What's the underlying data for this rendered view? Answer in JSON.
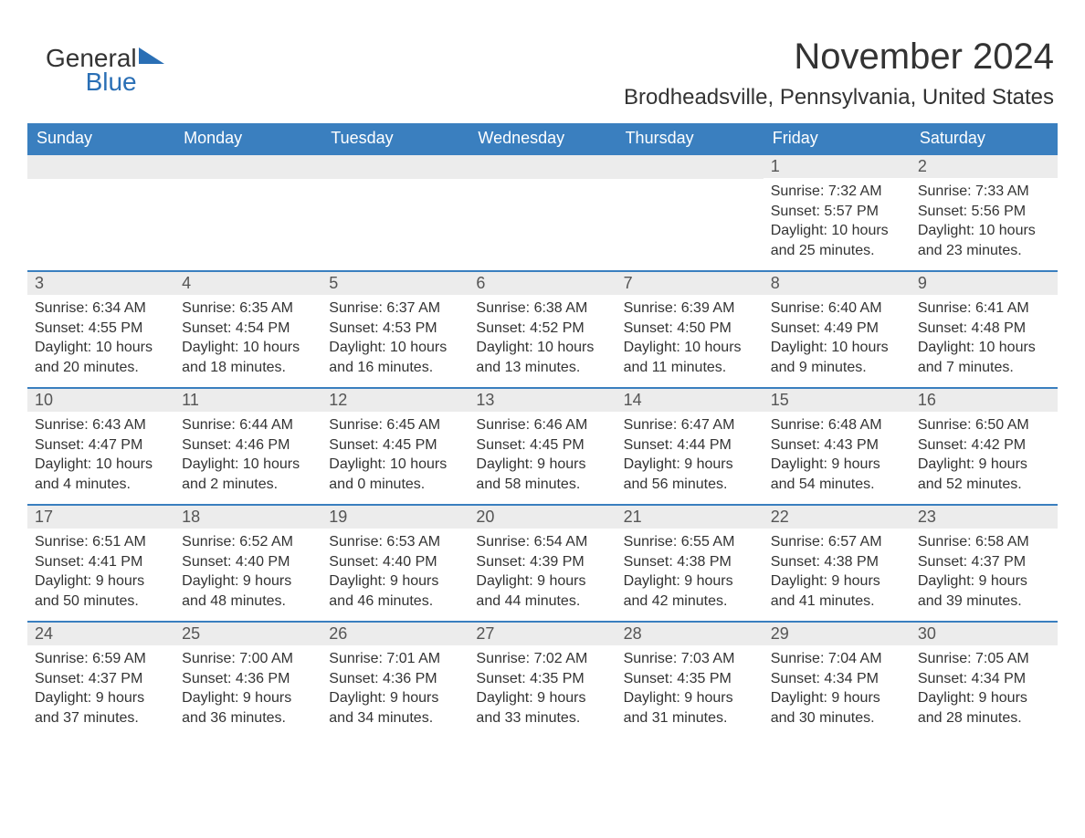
{
  "logo": {
    "word1": "General",
    "word2": "Blue"
  },
  "title": "November 2024",
  "location": "Brodheadsville, Pennsylvania, United States",
  "colors": {
    "header_bg": "#3a7fbf",
    "header_fg": "#ffffff",
    "row_accent": "#3a7fbf",
    "daynum_bg": "#ececec",
    "text": "#333333",
    "logo_blue": "#2a6fb5"
  },
  "weekdays": [
    "Sunday",
    "Monday",
    "Tuesday",
    "Wednesday",
    "Thursday",
    "Friday",
    "Saturday"
  ],
  "leading_blanks": 5,
  "days": [
    {
      "n": 1,
      "sunrise": "7:32 AM",
      "sunset": "5:57 PM",
      "dl1": "Daylight: 10 hours",
      "dl2": "and 25 minutes."
    },
    {
      "n": 2,
      "sunrise": "7:33 AM",
      "sunset": "5:56 PM",
      "dl1": "Daylight: 10 hours",
      "dl2": "and 23 minutes."
    },
    {
      "n": 3,
      "sunrise": "6:34 AM",
      "sunset": "4:55 PM",
      "dl1": "Daylight: 10 hours",
      "dl2": "and 20 minutes."
    },
    {
      "n": 4,
      "sunrise": "6:35 AM",
      "sunset": "4:54 PM",
      "dl1": "Daylight: 10 hours",
      "dl2": "and 18 minutes."
    },
    {
      "n": 5,
      "sunrise": "6:37 AM",
      "sunset": "4:53 PM",
      "dl1": "Daylight: 10 hours",
      "dl2": "and 16 minutes."
    },
    {
      "n": 6,
      "sunrise": "6:38 AM",
      "sunset": "4:52 PM",
      "dl1": "Daylight: 10 hours",
      "dl2": "and 13 minutes."
    },
    {
      "n": 7,
      "sunrise": "6:39 AM",
      "sunset": "4:50 PM",
      "dl1": "Daylight: 10 hours",
      "dl2": "and 11 minutes."
    },
    {
      "n": 8,
      "sunrise": "6:40 AM",
      "sunset": "4:49 PM",
      "dl1": "Daylight: 10 hours",
      "dl2": "and 9 minutes."
    },
    {
      "n": 9,
      "sunrise": "6:41 AM",
      "sunset": "4:48 PM",
      "dl1": "Daylight: 10 hours",
      "dl2": "and 7 minutes."
    },
    {
      "n": 10,
      "sunrise": "6:43 AM",
      "sunset": "4:47 PM",
      "dl1": "Daylight: 10 hours",
      "dl2": "and 4 minutes."
    },
    {
      "n": 11,
      "sunrise": "6:44 AM",
      "sunset": "4:46 PM",
      "dl1": "Daylight: 10 hours",
      "dl2": "and 2 minutes."
    },
    {
      "n": 12,
      "sunrise": "6:45 AM",
      "sunset": "4:45 PM",
      "dl1": "Daylight: 10 hours",
      "dl2": "and 0 minutes."
    },
    {
      "n": 13,
      "sunrise": "6:46 AM",
      "sunset": "4:45 PM",
      "dl1": "Daylight: 9 hours",
      "dl2": "and 58 minutes."
    },
    {
      "n": 14,
      "sunrise": "6:47 AM",
      "sunset": "4:44 PM",
      "dl1": "Daylight: 9 hours",
      "dl2": "and 56 minutes."
    },
    {
      "n": 15,
      "sunrise": "6:48 AM",
      "sunset": "4:43 PM",
      "dl1": "Daylight: 9 hours",
      "dl2": "and 54 minutes."
    },
    {
      "n": 16,
      "sunrise": "6:50 AM",
      "sunset": "4:42 PM",
      "dl1": "Daylight: 9 hours",
      "dl2": "and 52 minutes."
    },
    {
      "n": 17,
      "sunrise": "6:51 AM",
      "sunset": "4:41 PM",
      "dl1": "Daylight: 9 hours",
      "dl2": "and 50 minutes."
    },
    {
      "n": 18,
      "sunrise": "6:52 AM",
      "sunset": "4:40 PM",
      "dl1": "Daylight: 9 hours",
      "dl2": "and 48 minutes."
    },
    {
      "n": 19,
      "sunrise": "6:53 AM",
      "sunset": "4:40 PM",
      "dl1": "Daylight: 9 hours",
      "dl2": "and 46 minutes."
    },
    {
      "n": 20,
      "sunrise": "6:54 AM",
      "sunset": "4:39 PM",
      "dl1": "Daylight: 9 hours",
      "dl2": "and 44 minutes."
    },
    {
      "n": 21,
      "sunrise": "6:55 AM",
      "sunset": "4:38 PM",
      "dl1": "Daylight: 9 hours",
      "dl2": "and 42 minutes."
    },
    {
      "n": 22,
      "sunrise": "6:57 AM",
      "sunset": "4:38 PM",
      "dl1": "Daylight: 9 hours",
      "dl2": "and 41 minutes."
    },
    {
      "n": 23,
      "sunrise": "6:58 AM",
      "sunset": "4:37 PM",
      "dl1": "Daylight: 9 hours",
      "dl2": "and 39 minutes."
    },
    {
      "n": 24,
      "sunrise": "6:59 AM",
      "sunset": "4:37 PM",
      "dl1": "Daylight: 9 hours",
      "dl2": "and 37 minutes."
    },
    {
      "n": 25,
      "sunrise": "7:00 AM",
      "sunset": "4:36 PM",
      "dl1": "Daylight: 9 hours",
      "dl2": "and 36 minutes."
    },
    {
      "n": 26,
      "sunrise": "7:01 AM",
      "sunset": "4:36 PM",
      "dl1": "Daylight: 9 hours",
      "dl2": "and 34 minutes."
    },
    {
      "n": 27,
      "sunrise": "7:02 AM",
      "sunset": "4:35 PM",
      "dl1": "Daylight: 9 hours",
      "dl2": "and 33 minutes."
    },
    {
      "n": 28,
      "sunrise": "7:03 AM",
      "sunset": "4:35 PM",
      "dl1": "Daylight: 9 hours",
      "dl2": "and 31 minutes."
    },
    {
      "n": 29,
      "sunrise": "7:04 AM",
      "sunset": "4:34 PM",
      "dl1": "Daylight: 9 hours",
      "dl2": "and 30 minutes."
    },
    {
      "n": 30,
      "sunrise": "7:05 AM",
      "sunset": "4:34 PM",
      "dl1": "Daylight: 9 hours",
      "dl2": "and 28 minutes."
    }
  ],
  "labels": {
    "sunrise": "Sunrise: ",
    "sunset": "Sunset: "
  }
}
